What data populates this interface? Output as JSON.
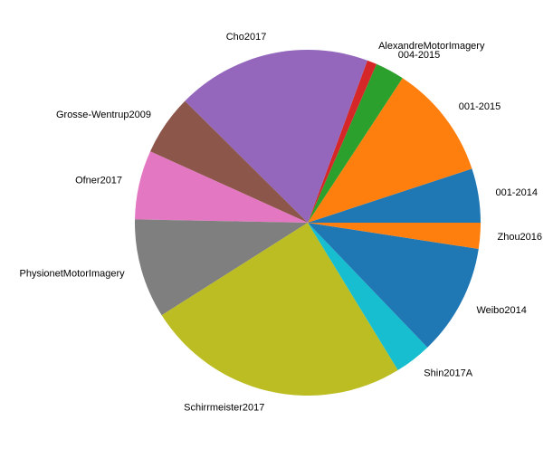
{
  "chart_data": {
    "type": "pie",
    "title": "",
    "start_angle_deg": 0,
    "direction": "counterclockwise",
    "legend": "none",
    "slices": [
      {
        "label": "001-2014",
        "value": 5.0,
        "color": "#1f77b4"
      },
      {
        "label": "001-2015",
        "value": 10.6,
        "color": "#ff7f0e"
      },
      {
        "label": "004-2015",
        "value": 2.7,
        "color": "#2ca02c"
      },
      {
        "label": "AlexandreMotorImagery",
        "value": 0.9,
        "color": "#d62728"
      },
      {
        "label": "Cho2017",
        "value": 18.0,
        "color": "#9467bd"
      },
      {
        "label": "Grosse-Wentrup2009",
        "value": 5.6,
        "color": "#8c564b"
      },
      {
        "label": "Ofner2017",
        "value": 6.4,
        "color": "#e377c2"
      },
      {
        "label": "PhysionetMotorImagery",
        "value": 9.2,
        "color": "#7f7f7f"
      },
      {
        "label": "Schirrmeister2017",
        "value": 24.5,
        "color": "#bcbd22"
      },
      {
        "label": "Shin2017A",
        "value": 3.4,
        "color": "#17becf"
      },
      {
        "label": "Weibo2014",
        "value": 10.3,
        "color": "#1f77b4"
      },
      {
        "label": "Zhou2016",
        "value": 2.4,
        "color": "#ff7f0e"
      }
    ]
  }
}
